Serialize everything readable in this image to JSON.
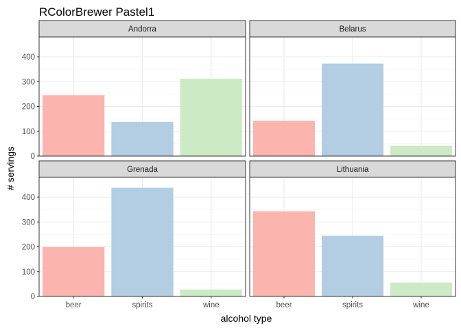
{
  "chart_data": {
    "type": "bar",
    "title": "RColorBrewer Pastel1",
    "xlabel": "alcohol type",
    "ylabel": "# servings",
    "categories": [
      "beer",
      "spirits",
      "wine"
    ],
    "colors": [
      "#FBB4AE",
      "#B3CDE3",
      "#CCEBC5"
    ],
    "ylim": [
      0,
      480
    ],
    "yticks": [
      0,
      100,
      200,
      300,
      400
    ],
    "grid": true,
    "facets": [
      {
        "name": "Andorra",
        "values": [
          245,
          138,
          312
        ]
      },
      {
        "name": "Belarus",
        "values": [
          142,
          373,
          42
        ]
      },
      {
        "name": "Grenada",
        "values": [
          199,
          438,
          28
        ]
      },
      {
        "name": "Lithuania",
        "values": [
          343,
          244,
          56
        ]
      }
    ]
  }
}
